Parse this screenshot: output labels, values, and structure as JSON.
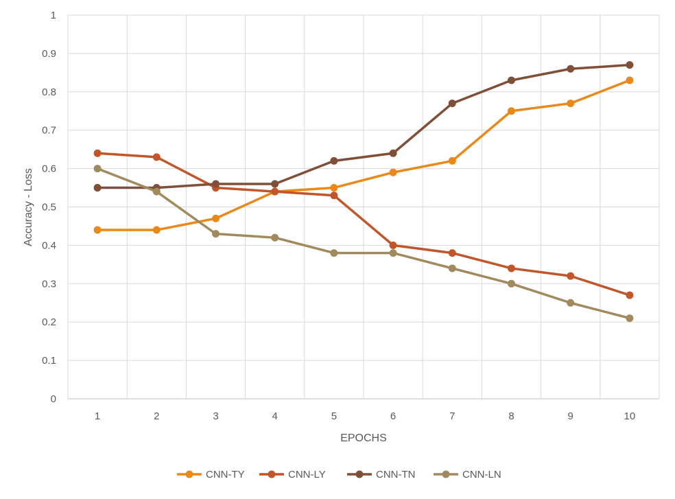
{
  "chart_data": {
    "type": "line",
    "title": "",
    "xlabel": "EPOCHS",
    "ylabel": "Accuracy - Loss",
    "categories": [
      "1",
      "2",
      "3",
      "4",
      "5",
      "6",
      "7",
      "8",
      "9",
      "10"
    ],
    "ylim": [
      0,
      1
    ],
    "yticks": [
      "0",
      "0.1",
      "0.2",
      "0.3",
      "0.4",
      "0.5",
      "0.6",
      "0.7",
      "0.8",
      "0.9",
      "1"
    ],
    "grid": true,
    "legend_position": "bottom",
    "series": [
      {
        "name": "CNN-TY",
        "color": "#E8891A",
        "values": [
          0.44,
          0.44,
          0.47,
          0.54,
          0.55,
          0.59,
          0.62,
          0.75,
          0.77,
          0.83
        ]
      },
      {
        "name": "CNN-LY",
        "color": "#C0562A",
        "values": [
          0.64,
          0.63,
          0.55,
          0.54,
          0.53,
          0.4,
          0.38,
          0.34,
          0.32,
          0.27
        ]
      },
      {
        "name": "CNN-TN",
        "color": "#7F4F3A",
        "values": [
          0.55,
          0.55,
          0.56,
          0.56,
          0.62,
          0.64,
          0.77,
          0.83,
          0.86,
          0.87
        ]
      },
      {
        "name": "CNN-LN",
        "color": "#A08A5E",
        "values": [
          0.6,
          0.54,
          0.43,
          0.42,
          0.38,
          0.38,
          0.34,
          0.3,
          0.25,
          0.21
        ]
      }
    ]
  }
}
